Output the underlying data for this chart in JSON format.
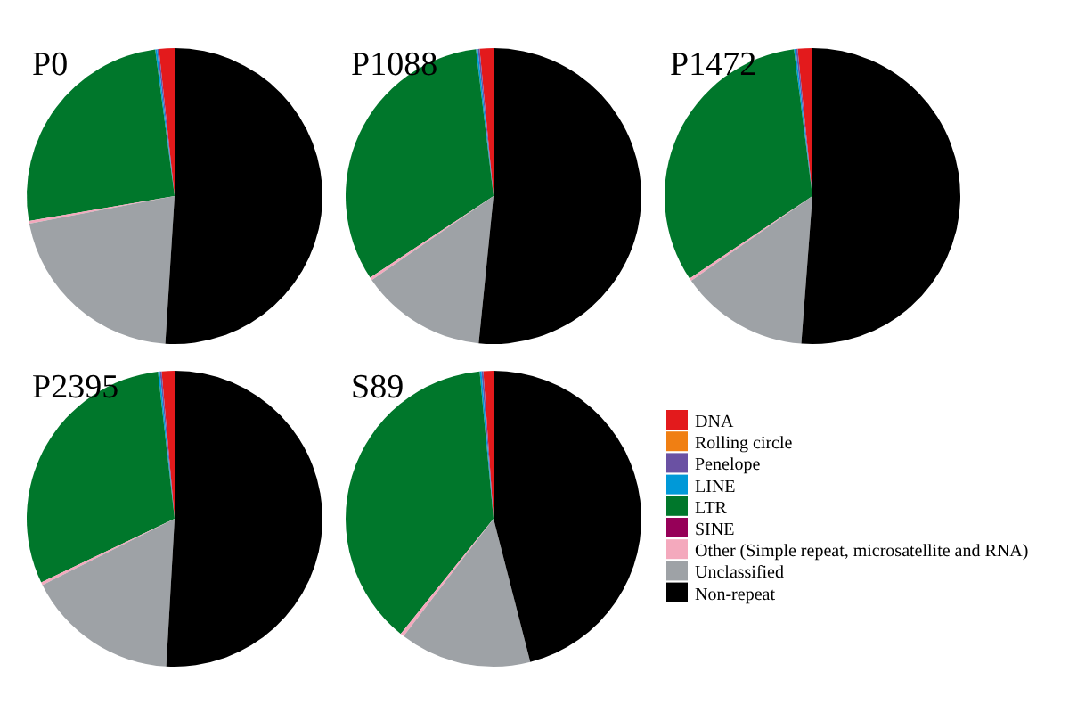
{
  "chart_data": [
    {
      "type": "pie",
      "title": "P0",
      "categories": [
        null,
        null,
        null,
        null,
        null,
        null,
        null,
        null,
        null
      ],
      "values": [
        1.7,
        0,
        0.2,
        0.2,
        25.6,
        0,
        0.3,
        21,
        51
      ],
      "colors": [
        "#e31a1c",
        "#f07f13",
        "#6a51a3",
        "#0099d8",
        "#00772b",
        "#960058",
        "#f4a9bd",
        "#9ea2a6",
        "#000000"
      ]
    },
    {
      "type": "pie",
      "title": "P1088",
      "categories": [
        null,
        null,
        null,
        null,
        null,
        null,
        null,
        null,
        null
      ],
      "values": [
        1.5,
        0,
        0.2,
        0.2,
        32.4,
        0,
        0.3,
        13.8,
        51.6
      ],
      "colors": [
        "#e31a1c",
        "#f07f13",
        "#6a51a3",
        "#0099d8",
        "#00772b",
        "#960058",
        "#f4a9bd",
        "#9ea2a6",
        "#000000"
      ]
    },
    {
      "type": "pie",
      "title": "P1472",
      "categories": [
        null,
        null,
        null,
        null,
        null,
        null,
        null,
        null,
        null
      ],
      "values": [
        1.6,
        0,
        0.2,
        0.2,
        32.4,
        0,
        0.3,
        14.1,
        51.2
      ],
      "colors": [
        "#e31a1c",
        "#f07f13",
        "#6a51a3",
        "#0099d8",
        "#00772b",
        "#960058",
        "#f4a9bd",
        "#9ea2a6",
        "#000000"
      ]
    },
    {
      "type": "pie",
      "title": "P2395",
      "categories": [
        null,
        null,
        null,
        null,
        null,
        null,
        null,
        null,
        null
      ],
      "values": [
        1.4,
        0,
        0.2,
        0.2,
        30.3,
        0,
        0.3,
        16.7,
        50.9
      ],
      "colors": [
        "#e31a1c",
        "#f07f13",
        "#6a51a3",
        "#0099d8",
        "#00772b",
        "#960058",
        "#f4a9bd",
        "#9ea2a6",
        "#000000"
      ]
    },
    {
      "type": "pie",
      "title": "S89",
      "categories": [
        "DNA",
        "Rolling circle",
        "Penelope",
        "LINE",
        "LTR",
        "SINE",
        "Other (Simple repeat, microsatellite and RNA)",
        "Unclassified",
        "Non-repeat"
      ],
      "values": [
        1.1,
        0,
        0.2,
        0.2,
        37.7,
        0,
        0.4,
        14.4,
        46
      ],
      "colors": [
        "#e31a1c",
        "#f07f13",
        "#6a51a3",
        "#0099d8",
        "#00772b",
        "#960058",
        "#f4a9bd",
        "#9ea2a6",
        "#000000"
      ],
      "legend": "right"
    }
  ]
}
